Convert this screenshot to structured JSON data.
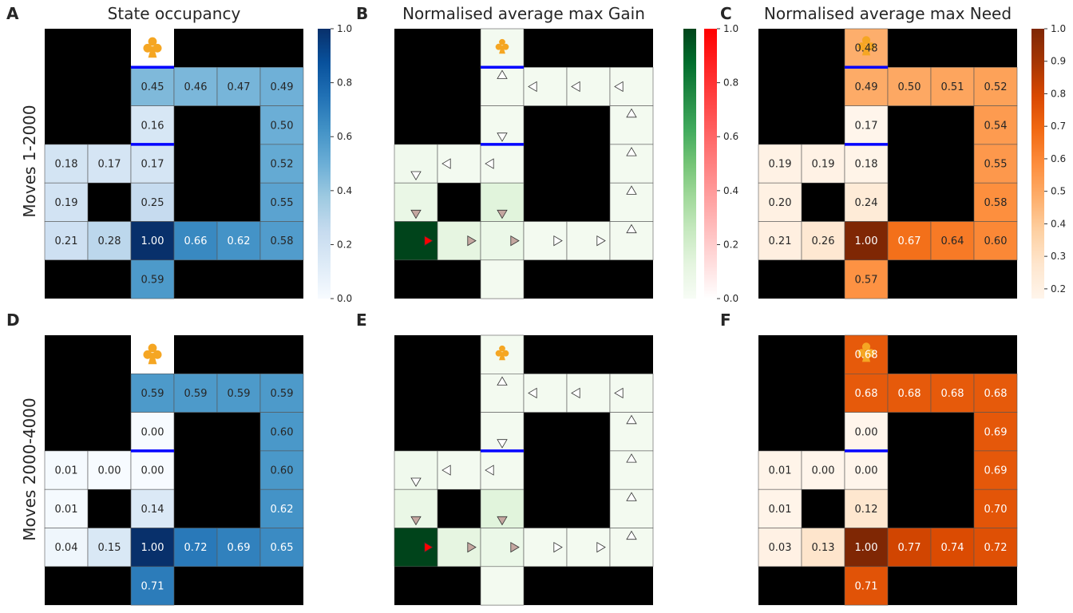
{
  "row_labels": [
    "Moves 1-2000",
    "Moves 2000-4000"
  ],
  "colors": {
    "wall": "#000000",
    "barrier": "#0000ff",
    "club": "#f5a623",
    "gain_pos_max": "#00441b",
    "gain_neg_max": "#ff0000"
  },
  "icons": {
    "goal": "club-icon",
    "policy": "triangle-arrow-icon"
  },
  "chart_data": [
    {
      "letter": "A",
      "type": "heatmap",
      "kind": "value",
      "cmap": "blues",
      "title": "State occupancy",
      "colorbar": {
        "ticks": [
          "0.0",
          "0.2",
          "0.4",
          "0.6",
          "0.8",
          "1.0"
        ],
        "min": 0,
        "max": 1
      },
      "show_club_cell": true,
      "cells": [
        {
          "r": 1,
          "c": 2,
          "v": 0.45
        },
        {
          "r": 1,
          "c": 3,
          "v": 0.46
        },
        {
          "r": 1,
          "c": 4,
          "v": 0.47
        },
        {
          "r": 1,
          "c": 5,
          "v": 0.49
        },
        {
          "r": 2,
          "c": 2,
          "v": 0.16
        },
        {
          "r": 2,
          "c": 5,
          "v": 0.5
        },
        {
          "r": 3,
          "c": 0,
          "v": 0.18
        },
        {
          "r": 3,
          "c": 1,
          "v": 0.17
        },
        {
          "r": 3,
          "c": 2,
          "v": 0.17
        },
        {
          "r": 3,
          "c": 5,
          "v": 0.52
        },
        {
          "r": 4,
          "c": 0,
          "v": 0.19
        },
        {
          "r": 4,
          "c": 2,
          "v": 0.25
        },
        {
          "r": 4,
          "c": 5,
          "v": 0.55
        },
        {
          "r": 5,
          "c": 0,
          "v": 0.21
        },
        {
          "r": 5,
          "c": 1,
          "v": 0.28
        },
        {
          "r": 5,
          "c": 2,
          "v": 1.0
        },
        {
          "r": 5,
          "c": 3,
          "v": 0.66
        },
        {
          "r": 5,
          "c": 4,
          "v": 0.62
        },
        {
          "r": 5,
          "c": 5,
          "v": 0.58
        },
        {
          "r": 6,
          "c": 2,
          "v": 0.59
        }
      ],
      "labels": {
        "1_2": "0.45",
        "1_3": "0.46",
        "1_4": "0.47",
        "1_5": "0.49",
        "2_2": "0.16",
        "2_5": "0.50",
        "3_0": "0.18",
        "3_1": "0.17",
        "3_2": "0.17",
        "3_5": "0.52",
        "4_0": "0.19",
        "4_2": "0.25",
        "4_5": "0.55",
        "5_0": "0.21",
        "5_1": "0.28",
        "5_2": "1.00",
        "5_3": "0.66",
        "5_4": "0.62",
        "5_5": "0.58",
        "6_2": "0.59"
      },
      "barriers": [
        1,
        3
      ]
    },
    {
      "letter": "B",
      "type": "heatmap",
      "kind": "gain",
      "title": "Normalised average max Gain",
      "colorbar": {
        "ticks": [
          "0.0",
          "0.2",
          "0.4",
          "0.6",
          "0.8",
          "1.0"
        ],
        "min": 0,
        "max": 1,
        "dual": true
      },
      "cells": [
        {
          "r": 0,
          "c": 2,
          "v": 0.03
        },
        {
          "r": 1,
          "c": 2,
          "v": 0.03,
          "a": "up"
        },
        {
          "r": 1,
          "c": 3,
          "v": 0.03,
          "a": "left"
        },
        {
          "r": 1,
          "c": 4,
          "v": 0.03,
          "a": "left"
        },
        {
          "r": 1,
          "c": 5,
          "v": 0.03,
          "a": "left"
        },
        {
          "r": 2,
          "c": 2,
          "v": 0.03,
          "a": "down"
        },
        {
          "r": 2,
          "c": 5,
          "v": 0.03,
          "a": "up"
        },
        {
          "r": 3,
          "c": 0,
          "v": 0.05,
          "a": "down"
        },
        {
          "r": 3,
          "c": 1,
          "v": 0.03,
          "a": "left"
        },
        {
          "r": 3,
          "c": 2,
          "v": 0.03,
          "a": "left"
        },
        {
          "r": 3,
          "c": 5,
          "v": 0.03,
          "a": "up"
        },
        {
          "r": 4,
          "c": 0,
          "v": 0.09,
          "a": "down",
          "ac": "#c4a7a0"
        },
        {
          "r": 4,
          "c": 2,
          "v": 0.14,
          "a": "down",
          "ac": "#c4a7a0"
        },
        {
          "r": 4,
          "c": 5,
          "v": 0.03,
          "a": "up"
        },
        {
          "r": 5,
          "c": 0,
          "v": 1.0,
          "a": "right",
          "ac": "#ff0000"
        },
        {
          "r": 5,
          "c": 1,
          "v": 0.12,
          "a": "right",
          "ac": "#c4a7a0"
        },
        {
          "r": 5,
          "c": 2,
          "v": 0.08,
          "a": "right",
          "ac": "#c4a7a0"
        },
        {
          "r": 5,
          "c": 3,
          "v": 0.03,
          "a": "right"
        },
        {
          "r": 5,
          "c": 4,
          "v": 0.03,
          "a": "right"
        },
        {
          "r": 5,
          "c": 5,
          "v": 0.03,
          "a": "up"
        },
        {
          "r": 6,
          "c": 2,
          "v": 0.03
        }
      ],
      "barriers": [
        1,
        3
      ]
    },
    {
      "letter": "C",
      "type": "heatmap",
      "kind": "value",
      "cmap": "oranges",
      "title": "Normalised average max Need",
      "colorbar": {
        "ticks": [
          "0.2",
          "0.3",
          "0.4",
          "0.5",
          "0.6",
          "0.7",
          "0.8",
          "0.9",
          "1.0"
        ],
        "min": 0.17,
        "max": 1
      },
      "cells": [
        {
          "r": 0,
          "c": 2,
          "v": 0.48
        },
        {
          "r": 1,
          "c": 2,
          "v": 0.49
        },
        {
          "r": 1,
          "c": 3,
          "v": 0.5
        },
        {
          "r": 1,
          "c": 4,
          "v": 0.51
        },
        {
          "r": 1,
          "c": 5,
          "v": 0.52
        },
        {
          "r": 2,
          "c": 2,
          "v": 0.17
        },
        {
          "r": 2,
          "c": 5,
          "v": 0.54
        },
        {
          "r": 3,
          "c": 0,
          "v": 0.19
        },
        {
          "r": 3,
          "c": 1,
          "v": 0.19
        },
        {
          "r": 3,
          "c": 2,
          "v": 0.18
        },
        {
          "r": 3,
          "c": 5,
          "v": 0.55
        },
        {
          "r": 4,
          "c": 0,
          "v": 0.2
        },
        {
          "r": 4,
          "c": 2,
          "v": 0.24
        },
        {
          "r": 4,
          "c": 5,
          "v": 0.58
        },
        {
          "r": 5,
          "c": 0,
          "v": 0.21
        },
        {
          "r": 5,
          "c": 1,
          "v": 0.26
        },
        {
          "r": 5,
          "c": 2,
          "v": 1.0
        },
        {
          "r": 5,
          "c": 3,
          "v": 0.67
        },
        {
          "r": 5,
          "c": 4,
          "v": 0.64
        },
        {
          "r": 5,
          "c": 5,
          "v": 0.6
        },
        {
          "r": 6,
          "c": 2,
          "v": 0.57
        }
      ],
      "labels": {
        "0_2": "0.48",
        "1_2": "0.49",
        "1_3": "0.50",
        "1_4": "0.51",
        "1_5": "0.52",
        "2_2": "0.17",
        "2_5": "0.54",
        "3_0": "0.19",
        "3_1": "0.19",
        "3_2": "0.18",
        "3_5": "0.55",
        "4_0": "0.20",
        "4_2": "0.24",
        "4_5": "0.58",
        "5_0": "0.21",
        "5_1": "0.26",
        "5_2": "1.00",
        "5_3": "0.67",
        "5_4": "0.64",
        "5_5": "0.60",
        "6_2": "0.57"
      },
      "barriers": [
        1,
        3
      ]
    },
    {
      "letter": "D",
      "type": "heatmap",
      "kind": "value",
      "cmap": "blues",
      "title": "",
      "show_club_cell": true,
      "cells": [
        {
          "r": 1,
          "c": 2,
          "v": 0.59
        },
        {
          "r": 1,
          "c": 3,
          "v": 0.59
        },
        {
          "r": 1,
          "c": 4,
          "v": 0.59
        },
        {
          "r": 1,
          "c": 5,
          "v": 0.59
        },
        {
          "r": 2,
          "c": 2,
          "v": 0.0
        },
        {
          "r": 2,
          "c": 5,
          "v": 0.6
        },
        {
          "r": 3,
          "c": 0,
          "v": 0.01
        },
        {
          "r": 3,
          "c": 1,
          "v": 0.0
        },
        {
          "r": 3,
          "c": 2,
          "v": 0.0
        },
        {
          "r": 3,
          "c": 5,
          "v": 0.6
        },
        {
          "r": 4,
          "c": 0,
          "v": 0.01
        },
        {
          "r": 4,
          "c": 2,
          "v": 0.14
        },
        {
          "r": 4,
          "c": 5,
          "v": 0.62
        },
        {
          "r": 5,
          "c": 0,
          "v": 0.04
        },
        {
          "r": 5,
          "c": 1,
          "v": 0.15
        },
        {
          "r": 5,
          "c": 2,
          "v": 1.0
        },
        {
          "r": 5,
          "c": 3,
          "v": 0.72
        },
        {
          "r": 5,
          "c": 4,
          "v": 0.69
        },
        {
          "r": 5,
          "c": 5,
          "v": 0.65
        },
        {
          "r": 6,
          "c": 2,
          "v": 0.71
        }
      ],
      "labels": {
        "1_2": "0.59",
        "1_3": "0.59",
        "1_4": "0.59",
        "1_5": "0.59",
        "2_2": "0.00",
        "2_5": "0.60",
        "3_0": "0.01",
        "3_1": "0.00",
        "3_2": "0.00",
        "3_5": "0.60",
        "4_0": "0.01",
        "4_2": "0.14",
        "4_5": "0.62",
        "5_0": "0.04",
        "5_1": "0.15",
        "5_2": "1.00",
        "5_3": "0.72",
        "5_4": "0.69",
        "5_5": "0.65",
        "6_2": "0.71"
      },
      "barriers": [
        3
      ]
    },
    {
      "letter": "E",
      "type": "heatmap",
      "kind": "gain",
      "title": "",
      "cells": [
        {
          "r": 0,
          "c": 2,
          "v": 0.03
        },
        {
          "r": 1,
          "c": 2,
          "v": 0.03,
          "a": "up"
        },
        {
          "r": 1,
          "c": 3,
          "v": 0.03,
          "a": "left"
        },
        {
          "r": 1,
          "c": 4,
          "v": 0.03,
          "a": "left"
        },
        {
          "r": 1,
          "c": 5,
          "v": 0.03,
          "a": "left"
        },
        {
          "r": 2,
          "c": 2,
          "v": 0.03,
          "a": "down"
        },
        {
          "r": 2,
          "c": 5,
          "v": 0.03,
          "a": "up"
        },
        {
          "r": 3,
          "c": 0,
          "v": 0.05,
          "a": "down"
        },
        {
          "r": 3,
          "c": 1,
          "v": 0.03,
          "a": "left"
        },
        {
          "r": 3,
          "c": 2,
          "v": 0.03,
          "a": "left"
        },
        {
          "r": 3,
          "c": 5,
          "v": 0.03,
          "a": "up"
        },
        {
          "r": 4,
          "c": 0,
          "v": 0.09,
          "a": "down",
          "ac": "#c4a7a0"
        },
        {
          "r": 4,
          "c": 2,
          "v": 0.14,
          "a": "down",
          "ac": "#c4a7a0"
        },
        {
          "r": 4,
          "c": 5,
          "v": 0.03,
          "a": "up"
        },
        {
          "r": 5,
          "c": 0,
          "v": 1.0,
          "a": "right",
          "ac": "#ff0000"
        },
        {
          "r": 5,
          "c": 1,
          "v": 0.12,
          "a": "right",
          "ac": "#c4a7a0"
        },
        {
          "r": 5,
          "c": 2,
          "v": 0.08,
          "a": "right",
          "ac": "#c4a7a0"
        },
        {
          "r": 5,
          "c": 3,
          "v": 0.03,
          "a": "right"
        },
        {
          "r": 5,
          "c": 4,
          "v": 0.03,
          "a": "right"
        },
        {
          "r": 5,
          "c": 5,
          "v": 0.03,
          "a": "up"
        },
        {
          "r": 6,
          "c": 2,
          "v": 0.03
        }
      ],
      "barriers": [
        3
      ]
    },
    {
      "letter": "F",
      "type": "heatmap",
      "kind": "value",
      "cmap": "oranges",
      "title": "",
      "cells": [
        {
          "r": 0,
          "c": 2,
          "v": 0.68
        },
        {
          "r": 1,
          "c": 2,
          "v": 0.68
        },
        {
          "r": 1,
          "c": 3,
          "v": 0.68
        },
        {
          "r": 1,
          "c": 4,
          "v": 0.68
        },
        {
          "r": 1,
          "c": 5,
          "v": 0.68
        },
        {
          "r": 2,
          "c": 2,
          "v": 0.0
        },
        {
          "r": 2,
          "c": 5,
          "v": 0.69
        },
        {
          "r": 3,
          "c": 0,
          "v": 0.01
        },
        {
          "r": 3,
          "c": 1,
          "v": 0.0
        },
        {
          "r": 3,
          "c": 2,
          "v": 0.0
        },
        {
          "r": 3,
          "c": 5,
          "v": 0.69
        },
        {
          "r": 4,
          "c": 0,
          "v": 0.01
        },
        {
          "r": 4,
          "c": 2,
          "v": 0.12
        },
        {
          "r": 4,
          "c": 5,
          "v": 0.7
        },
        {
          "r": 5,
          "c": 0,
          "v": 0.03
        },
        {
          "r": 5,
          "c": 1,
          "v": 0.13
        },
        {
          "r": 5,
          "c": 2,
          "v": 1.0
        },
        {
          "r": 5,
          "c": 3,
          "v": 0.77
        },
        {
          "r": 5,
          "c": 4,
          "v": 0.74
        },
        {
          "r": 5,
          "c": 5,
          "v": 0.72
        },
        {
          "r": 6,
          "c": 2,
          "v": 0.71
        }
      ],
      "labels": {
        "0_2": "0.68",
        "1_2": "0.68",
        "1_3": "0.68",
        "1_4": "0.68",
        "1_5": "0.68",
        "2_2": "0.00",
        "2_5": "0.69",
        "3_0": "0.01",
        "3_1": "0.00",
        "3_2": "0.00",
        "3_5": "0.69",
        "4_0": "0.01",
        "4_2": "0.12",
        "4_5": "0.70",
        "5_0": "0.03",
        "5_1": "0.13",
        "5_2": "1.00",
        "5_3": "0.77",
        "5_4": "0.74",
        "5_5": "0.72",
        "6_2": "0.71"
      },
      "barriers": [
        3
      ]
    }
  ]
}
